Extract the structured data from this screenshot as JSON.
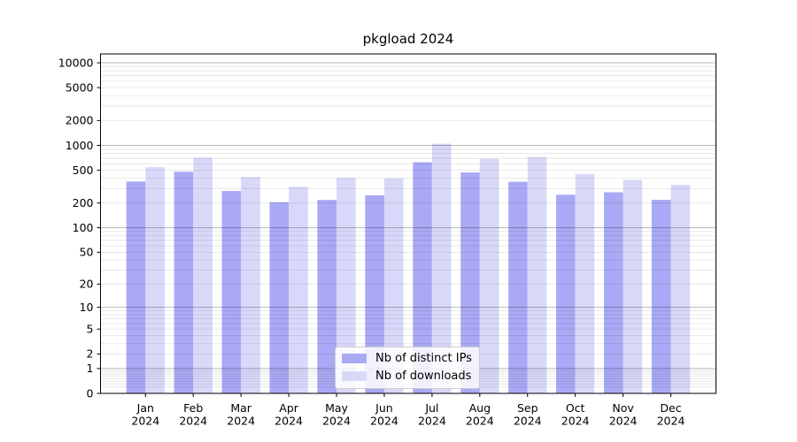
{
  "title": "pkgload 2024",
  "colors": {
    "ips": "#a9a9f5",
    "downloads": "#d8d8f9",
    "grid_major": "rgba(0,0,0,0.28)",
    "grid_minor": "rgba(0,0,0,0.09)",
    "axis": "#000000",
    "text": "#000000",
    "legend_bg": "rgba(255,255,255,0.85)",
    "legend_border": "#cccccc"
  },
  "legend": {
    "items": [
      {
        "label": "Nb of distinct IPs",
        "series": "ips"
      },
      {
        "label": "Nb of downloads",
        "series": "downloads"
      }
    ],
    "position": "lower center"
  },
  "chart_data": {
    "type": "bar",
    "title": "pkgload 2024",
    "x": [
      "Jan",
      "Feb",
      "Mar",
      "Apr",
      "May",
      "Jun",
      "Jul",
      "Aug",
      "Sep",
      "Oct",
      "Nov",
      "Dec"
    ],
    "x_year": "2024",
    "series": [
      {
        "name": "Nb of distinct IPs",
        "values": [
          365,
          480,
          280,
          205,
          218,
          248,
          625,
          470,
          362,
          252,
          270,
          219
        ]
      },
      {
        "name": "Nb of downloads",
        "values": [
          545,
          710,
          415,
          315,
          405,
          398,
          1050,
          690,
          725,
          450,
          382,
          332
        ]
      }
    ],
    "y_scale": "log1p",
    "ylim": [
      0,
      12800
    ],
    "y_ticks": [
      0,
      1,
      2,
      5,
      10,
      20,
      50,
      100,
      200,
      500,
      1000,
      2000,
      5000,
      10000
    ],
    "grid": true,
    "grid_on_top_of_bars": true,
    "legend_position": "lower center"
  }
}
